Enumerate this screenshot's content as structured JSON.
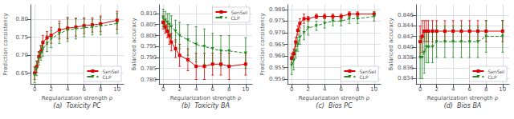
{
  "chart_data": [
    {
      "type": "line",
      "title": "(a)  Toxicity PC",
      "xlabel": "Regularization strength ρ",
      "ylabel": "Prediction consistency",
      "x": [
        0,
        0.25,
        0.5,
        0.75,
        1,
        1.5,
        2,
        3,
        4,
        5,
        6,
        7,
        8,
        10
      ],
      "xlim": [
        -0.5,
        10.8
      ],
      "xticks": [
        0,
        2,
        4,
        6,
        8,
        10
      ],
      "ylim": [
        0.62,
        0.84
      ],
      "yticks": [
        0.65,
        {
          "value": 0.7,
          "label": "0.70"
        },
        0.75,
        {
          "value": 0.8,
          "label": "0.80"
        }
      ],
      "grid": true,
      "legend": "lower right",
      "series": [
        {
          "name": "SenSeI",
          "color": "#dd0000",
          "marker": "square",
          "line_style": "solid",
          "values": [
            0.65,
            0.668,
            0.695,
            0.71,
            0.735,
            0.748,
            0.755,
            0.77,
            0.775,
            0.778,
            0.782,
            0.784,
            0.787,
            0.797
          ],
          "errors": [
            0.018,
            0.016,
            0.015,
            0.017,
            0.02,
            0.018,
            0.022,
            0.025,
            0.03,
            0.025,
            0.022,
            0.02,
            0.022,
            0.025
          ]
        },
        {
          "name": "CLP",
          "color": "#228B22",
          "marker": "triangle_down",
          "line_style": "dashed",
          "values": [
            0.645,
            0.663,
            0.69,
            0.706,
            0.718,
            0.732,
            0.745,
            0.76,
            0.77,
            0.773,
            0.776,
            0.778,
            0.781,
            0.788
          ],
          "errors": [
            0.022,
            0.02,
            0.018,
            0.02,
            0.022,
            0.022,
            0.024,
            0.028,
            0.032,
            0.028,
            0.025,
            0.022,
            0.024,
            0.028
          ]
        }
      ]
    },
    {
      "type": "line",
      "title": "(b)  Toxicity BA",
      "xlabel": "Regularization strength ρ",
      "ylabel": "Balanced accuracy",
      "x": [
        0,
        0.25,
        0.5,
        0.75,
        1,
        1.5,
        2,
        3,
        4,
        5,
        6,
        7,
        8,
        10
      ],
      "xlim": [
        -0.5,
        10.8
      ],
      "xticks": [
        0,
        2,
        4,
        6,
        8,
        10
      ],
      "ylim": [
        0.778,
        0.814
      ],
      "yticks": [
        {
          "value": 0.78,
          "label": "0.780"
        },
        0.785,
        {
          "value": 0.79,
          "label": "0.790"
        },
        0.795,
        {
          "value": 0.8,
          "label": "0.800"
        },
        0.805,
        {
          "value": 0.81,
          "label": "0.810"
        }
      ],
      "grid": true,
      "legend": "upper right",
      "series": [
        {
          "name": "SenSeI",
          "color": "#dd0000",
          "marker": "square",
          "line_style": "solid",
          "values": [
            0.806,
            0.804,
            0.802,
            0.8,
            0.797,
            0.794,
            0.791,
            0.789,
            0.786,
            0.786,
            0.787,
            0.787,
            0.786,
            0.787
          ],
          "errors": [
            0.003,
            0.003,
            0.003,
            0.004,
            0.004,
            0.004,
            0.005,
            0.005,
            0.006,
            0.006,
            0.005,
            0.005,
            0.006,
            0.005
          ]
        },
        {
          "name": "CLP",
          "color": "#228B22",
          "marker": "triangle_down",
          "line_style": "dashed",
          "values": [
            0.808,
            0.807,
            0.806,
            0.805,
            0.804,
            0.802,
            0.8,
            0.798,
            0.796,
            0.795,
            0.794,
            0.793,
            0.793,
            0.792
          ],
          "errors": [
            0.004,
            0.004,
            0.004,
            0.005,
            0.005,
            0.005,
            0.006,
            0.007,
            0.008,
            0.008,
            0.007,
            0.007,
            0.007,
            0.007
          ]
        }
      ]
    },
    {
      "type": "line",
      "title": "(c)  Bios PC",
      "xlabel": "Regularization strength ρ",
      "ylabel": "Prediction consistency",
      "x": [
        0,
        0.25,
        0.5,
        0.75,
        1,
        1.5,
        2,
        3,
        4,
        5,
        6,
        7,
        8,
        10
      ],
      "xlim": [
        -0.5,
        10.8
      ],
      "xticks": [
        0,
        2,
        4,
        6,
        8,
        10
      ],
      "ylim": [
        0.948,
        0.982
      ],
      "yticks": [
        {
          "value": 0.95,
          "label": "0.950"
        },
        0.955,
        {
          "value": 0.96,
          "label": "0.960"
        },
        0.965,
        {
          "value": 0.97,
          "label": "0.970"
        },
        0.975,
        {
          "value": 0.98,
          "label": "0.980"
        }
      ],
      "grid": true,
      "legend": "lower right",
      "series": [
        {
          "name": "SenSeI",
          "color": "#dd0000",
          "marker": "square",
          "line_style": "solid",
          "values": [
            0.959,
            0.961,
            0.966,
            0.971,
            0.974,
            0.976,
            0.976,
            0.977,
            0.977,
            0.977,
            0.977,
            0.978,
            0.978,
            0.978
          ],
          "errors": [
            0.002,
            0.002,
            0.002,
            0.002,
            0.002,
            0.002,
            0.001,
            0.001,
            0.001,
            0.001,
            0.001,
            0.001,
            0.001,
            0.001
          ]
        },
        {
          "name": "CLP",
          "color": "#228B22",
          "marker": "triangle_down",
          "line_style": "dashed",
          "values": [
            0.956,
            0.958,
            0.962,
            0.965,
            0.968,
            0.97,
            0.972,
            0.973,
            0.974,
            0.975,
            0.975,
            0.976,
            0.976,
            0.977
          ],
          "errors": [
            0.004,
            0.004,
            0.003,
            0.003,
            0.003,
            0.003,
            0.003,
            0.002,
            0.002,
            0.002,
            0.002,
            0.002,
            0.002,
            0.002
          ]
        }
      ]
    },
    {
      "type": "line",
      "title": "(d)  Bios BA",
      "xlabel": "Regularization strength ρ",
      "ylabel": "Balanced accuracy",
      "x": [
        0,
        0.25,
        0.5,
        0.75,
        1,
        1.5,
        2,
        3,
        4,
        5,
        6,
        7,
        8,
        10
      ],
      "xlim": [
        -0.5,
        10.8
      ],
      "xticks": [
        0,
        2,
        4,
        6,
        8,
        10
      ],
      "ylim": [
        0.833,
        0.848
      ],
      "yticks": [
        0.834,
        0.836,
        0.838,
        {
          "value": 0.84,
          "label": "0.840"
        },
        0.842,
        0.844,
        0.846
      ],
      "grid": true,
      "legend": "lower right",
      "series": [
        {
          "name": "SenSeI",
          "color": "#dd0000",
          "marker": "square",
          "line_style": "solid",
          "values": [
            0.841,
            0.842,
            0.843,
            0.843,
            0.843,
            0.843,
            0.843,
            0.843,
            0.843,
            0.843,
            0.843,
            0.843,
            0.843,
            0.843
          ],
          "errors": [
            0.003,
            0.003,
            0.002,
            0.002,
            0.002,
            0.002,
            0.002,
            0.002,
            0.002,
            0.002,
            0.002,
            0.002,
            0.002,
            0.002
          ]
        },
        {
          "name": "CLP",
          "color": "#228B22",
          "marker": "triangle_down",
          "line_style": "dashed",
          "values": [
            0.838,
            0.838,
            0.839,
            0.84,
            0.84,
            0.84,
            0.841,
            0.841,
            0.841,
            0.841,
            0.841,
            0.841,
            0.842,
            0.842
          ],
          "errors": [
            0.004,
            0.004,
            0.004,
            0.003,
            0.003,
            0.003,
            0.003,
            0.003,
            0.003,
            0.003,
            0.003,
            0.003,
            0.003,
            0.003
          ]
        }
      ]
    }
  ]
}
